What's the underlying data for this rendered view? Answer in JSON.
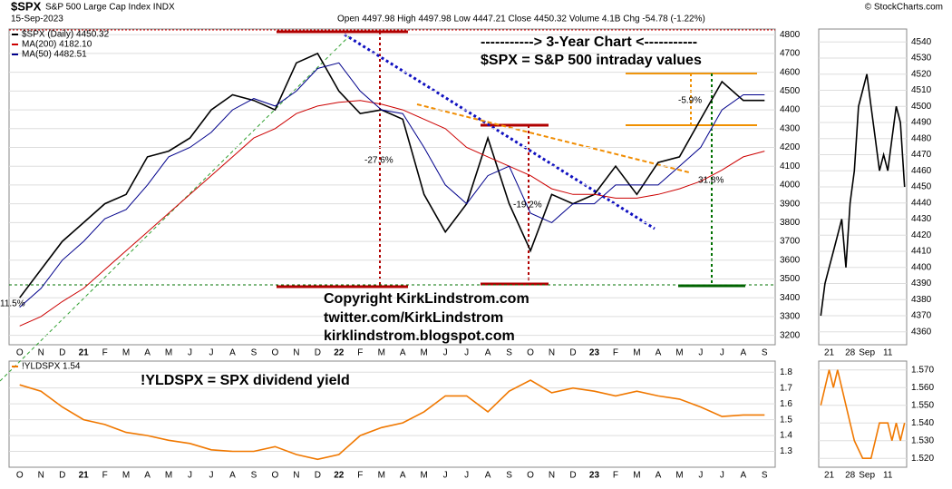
{
  "header": {
    "symbol": "$SPX",
    "name": "S&P 500 Large Cap Index INDX",
    "date": "15-Sep-2023",
    "quote": "Open 4497.98  High 4497.98  Low 4447.21  Close 4450.32  Volume 4.1B  Chg -54.78 (-1.22%)",
    "credit": "© StockCharts.com"
  },
  "chart_data": [
    {
      "type": "line",
      "categories": [
        "O",
        "N",
        "D",
        "21",
        "F",
        "M",
        "A",
        "M",
        "J",
        "J",
        "A",
        "S",
        "O",
        "N",
        "D",
        "22",
        "F",
        "M",
        "A",
        "M",
        "J",
        "J",
        "A",
        "S",
        "O",
        "N",
        "D",
        "23",
        "F",
        "M",
        "A",
        "M",
        "J",
        "J",
        "A",
        "S"
      ],
      "series": [
        {
          "name": "$SPX (Daily) 4450.32",
          "color": "#000000",
          "values": [
            3400,
            3550,
            3700,
            3800,
            3900,
            3950,
            4150,
            4180,
            4250,
            4400,
            4480,
            4450,
            4400,
            4650,
            4700,
            4500,
            4380,
            4400,
            4350,
            3950,
            3750,
            3900,
            4250,
            3900,
            3650,
            3950,
            3900,
            3950,
            4100,
            3950,
            4120,
            4150,
            4350,
            4550,
            4450,
            4450
          ]
        },
        {
          "name": "MA(200) 4182.10",
          "color": "#cc0000",
          "values": [
            3250,
            3300,
            3380,
            3450,
            3550,
            3650,
            3750,
            3850,
            3950,
            4050,
            4150,
            4250,
            4300,
            4380,
            4420,
            4440,
            4450,
            4430,
            4400,
            4350,
            4300,
            4200,
            4150,
            4100,
            4050,
            3980,
            3950,
            3950,
            3930,
            3930,
            3950,
            3980,
            4020,
            4080,
            4150,
            4180
          ]
        },
        {
          "name": "MA(50) 4482.51",
          "color": "#00008b",
          "values": [
            3350,
            3450,
            3600,
            3700,
            3820,
            3870,
            4000,
            4150,
            4200,
            4280,
            4400,
            4460,
            4420,
            4500,
            4620,
            4650,
            4500,
            4400,
            4380,
            4200,
            4000,
            3900,
            4050,
            4100,
            3850,
            3800,
            3900,
            3900,
            4000,
            4000,
            4000,
            4100,
            4200,
            4400,
            4480,
            4480
          ]
        }
      ],
      "ylim": [
        3150,
        4830
      ],
      "yticks": [
        3200,
        3300,
        3400,
        3500,
        3600,
        3700,
        3800,
        3900,
        4000,
        4100,
        4200,
        4300,
        4400,
        4500,
        4600,
        4700,
        4800
      ],
      "grid": true,
      "annotations": [
        "-----------> 3-Year Chart <-----------",
        "$SPX = S&P 500 intraday values",
        "Copyright KirkLindstrom.com",
        "twitter.com/KirkLindstrom",
        "kirklindstrom.blogspot.com",
        "-27.6%",
        "-19.2%",
        "-5.9%",
        "31.8%",
        "11.5%"
      ]
    },
    {
      "type": "line",
      "categories": [
        "O",
        "N",
        "D",
        "21",
        "F",
        "M",
        "A",
        "M",
        "J",
        "J",
        "A",
        "S",
        "O",
        "N",
        "D",
        "22",
        "F",
        "M",
        "A",
        "M",
        "J",
        "J",
        "A",
        "S",
        "O",
        "N",
        "D",
        "23",
        "F",
        "M",
        "A",
        "M",
        "J",
        "J",
        "A",
        "S"
      ],
      "series": [
        {
          "name": "!YLDSPX 1.54",
          "color": "#f07800",
          "values": [
            1.72,
            1.68,
            1.58,
            1.5,
            1.47,
            1.42,
            1.4,
            1.37,
            1.35,
            1.31,
            1.3,
            1.3,
            1.33,
            1.28,
            1.25,
            1.28,
            1.4,
            1.45,
            1.48,
            1.55,
            1.65,
            1.65,
            1.55,
            1.68,
            1.75,
            1.67,
            1.7,
            1.68,
            1.65,
            1.68,
            1.65,
            1.63,
            1.58,
            1.52,
            1.53,
            1.53
          ]
        }
      ],
      "ylim": [
        1.2,
        1.87
      ],
      "yticks": [
        1.3,
        1.4,
        1.5,
        1.6,
        1.7,
        1.8
      ],
      "grid": true,
      "annotations": [
        "!YLDSPX = SPX dividend yield"
      ]
    },
    {
      "type": "line",
      "categories": [
        null,
        null,
        "21",
        null,
        null,
        null,
        null,
        "28",
        null,
        null,
        null,
        "Sep",
        null,
        null,
        null,
        null,
        "11",
        null,
        null,
        null,
        null
      ],
      "series": [
        {
          "color": "#000000",
          "values": [
            4370,
            4390,
            4400,
            4410,
            4420,
            4430,
            4400,
            4440,
            4460,
            4500,
            4510,
            4520,
            4500,
            4480,
            4460,
            4470,
            4460,
            4480,
            4500,
            4490,
            4450
          ]
        }
      ],
      "ylim": [
        4352,
        4548
      ],
      "yticks": [
        4360,
        4370,
        4380,
        4390,
        4400,
        4410,
        4420,
        4430,
        4440,
        4450,
        4460,
        4470,
        4480,
        4490,
        4500,
        4510,
        4520,
        4530,
        4540
      ],
      "grid": true
    },
    {
      "type": "line",
      "categories": [
        null,
        null,
        "21",
        null,
        null,
        null,
        null,
        "28",
        null,
        null,
        null,
        "Sep",
        null,
        null,
        null,
        null,
        "11",
        null,
        null,
        null,
        null
      ],
      "series": [
        {
          "color": "#f07800",
          "values": [
            1.55,
            1.56,
            1.57,
            1.56,
            1.57,
            1.56,
            1.55,
            1.54,
            1.53,
            1.525,
            1.52,
            1.52,
            1.52,
            1.53,
            1.54,
            1.54,
            1.54,
            1.53,
            1.54,
            1.53,
            1.54
          ]
        }
      ],
      "ylim": [
        1.515,
        1.575
      ],
      "yticks": [
        {
          "value": 1.52,
          "label": "1.520"
        },
        {
          "value": 1.53,
          "label": "1.530"
        },
        {
          "value": 1.54,
          "label": "1.540"
        },
        {
          "value": 1.55,
          "label": "1.550"
        },
        {
          "value": 1.56,
          "label": "1.560"
        },
        {
          "value": 1.57,
          "label": "1.570"
        }
      ],
      "grid": true
    }
  ]
}
